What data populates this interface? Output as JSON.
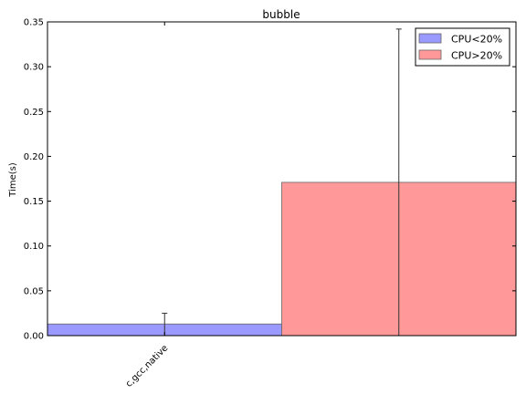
{
  "chart_data": {
    "type": "bar",
    "title": "bubble",
    "xlabel": "",
    "ylabel": "Time(s)",
    "ylim": [
      0,
      0.35
    ],
    "yticks": [
      "0.00",
      "0.05",
      "0.10",
      "0.15",
      "0.20",
      "0.25",
      "0.30",
      "0.35"
    ],
    "categories": [
      "c,gcc,native"
    ],
    "series": [
      {
        "name": "CPU<20%",
        "color": "#9999ff",
        "value": 0.013,
        "error_top": 0.025
      },
      {
        "name": "CPU>20%",
        "color": "#ff9999",
        "value": 0.171,
        "error_top": 0.342
      }
    ],
    "legend_position": "top-right",
    "grid": false
  }
}
